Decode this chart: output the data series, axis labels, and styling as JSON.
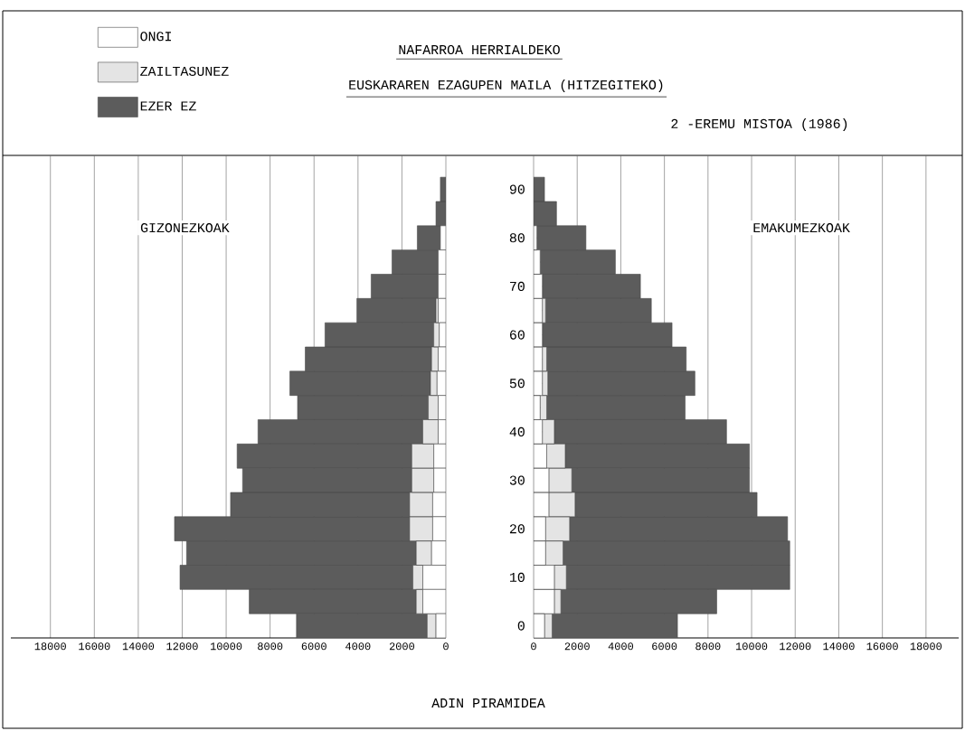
{
  "chart_data": [
    {
      "type": "bar",
      "orientation": "horizontal",
      "stacked": true,
      "title": "NAFARROA HERRIALDEKO",
      "subtitle": "EUSKARAREN EZAGUPEN MAILA (HITZEGITEKO)",
      "annotations": [
        "2 -EREMU MISTOA (1986)",
        "GIZONEZKOAK"
      ],
      "categories": [
        "90",
        null,
        "80",
        null,
        "70",
        null,
        "60",
        null,
        "50",
        null,
        "40",
        null,
        "30",
        null,
        "20",
        null,
        "10",
        null,
        "0"
      ],
      "series": [
        {
          "name": "ONGI",
          "color": "#ffffff",
          "values": [
            0,
            0,
            250,
            350,
            350,
            350,
            300,
            350,
            400,
            350,
            350,
            550,
            550,
            600,
            600,
            650,
            1050,
            1050,
            450
          ]
        },
        {
          "name": "ZAILTASUNEZ",
          "color": "#e4e4e4",
          "values": [
            0,
            0,
            0,
            0,
            0,
            100,
            250,
            300,
            300,
            450,
            700,
            1000,
            1000,
            1050,
            1050,
            700,
            450,
            300,
            400
          ]
        },
        {
          "name": "EZER EZ",
          "color": "#5c5c5c",
          "values": [
            250,
            450,
            1050,
            2100,
            3050,
            3600,
            4950,
            5750,
            6400,
            5950,
            7500,
            7950,
            7700,
            8150,
            10700,
            10450,
            10600,
            7600,
            5950
          ]
        }
      ],
      "xlim": [
        19800,
        0
      ],
      "xticks": [
        0,
        2000,
        4000,
        6000,
        8000,
        10000,
        12000,
        14000,
        16000,
        18000
      ],
      "grid": "x",
      "legend": "top left",
      "tick_labels": "x"
    },
    {
      "type": "bar",
      "orientation": "horizontal",
      "stacked": true,
      "annotations": [
        "EMAKUMEZKOAK"
      ],
      "xlabel": "ADIN PIRAMIDEA",
      "categories": [
        "90",
        null,
        "80",
        null,
        "70",
        null,
        "60",
        null,
        "50",
        null,
        "40",
        null,
        "30",
        null,
        "20",
        null,
        "10",
        null,
        "0"
      ],
      "series": [
        {
          "color": "#ffffff",
          "values": [
            0,
            0,
            150,
            300,
            400,
            400,
            400,
            400,
            400,
            300,
            400,
            600,
            700,
            700,
            550,
            550,
            950,
            950,
            500
          ]
        },
        {
          "color": "#e4e4e4",
          "values": [
            0,
            0,
            0,
            0,
            0,
            150,
            0,
            200,
            250,
            300,
            550,
            850,
            1050,
            1200,
            1100,
            800,
            550,
            300,
            350
          ]
        },
        {
          "color": "#5c5c5c",
          "values": [
            500,
            1050,
            2250,
            3450,
            4500,
            4850,
            5950,
            6400,
            6750,
            6350,
            7900,
            8450,
            8150,
            8350,
            10000,
            10400,
            10250,
            7150,
            5750
          ]
        }
      ],
      "xlim": [
        0,
        19500
      ],
      "xticks": [
        0,
        2000,
        4000,
        6000,
        8000,
        10000,
        12000,
        14000,
        16000,
        18000
      ],
      "grid": "x"
    }
  ]
}
